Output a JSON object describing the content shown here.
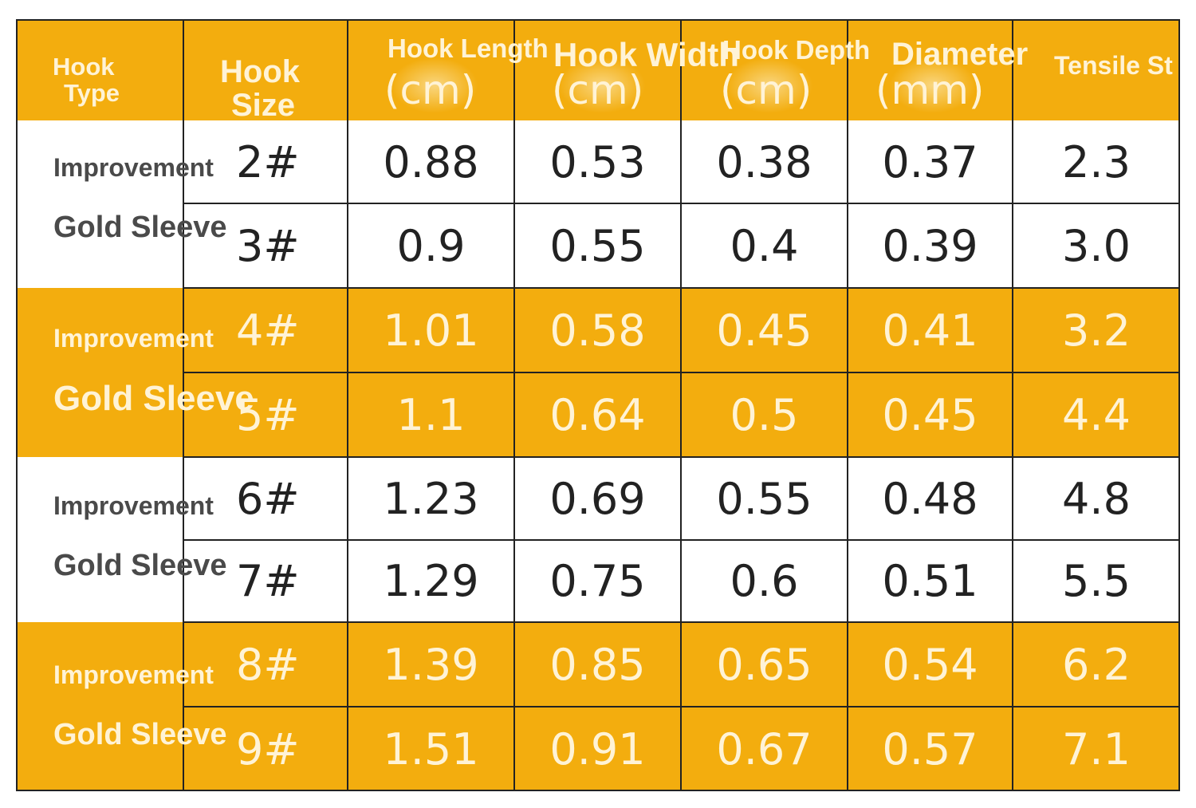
{
  "colors": {
    "gold": "#f3ad0e",
    "white": "#ffffff",
    "text_dark": "#222222",
    "text_light": "#fff3d6",
    "label_dark": "#4a4a4a"
  },
  "header": {
    "hook_type": [
      "Hook",
      "Type"
    ],
    "hook_size": [
      "Hook",
      "Size"
    ],
    "hook_length": "Hook Length",
    "hook_width": "Hook Width",
    "hook_depth": "Hook Depth",
    "diameter": "Diameter",
    "tensile": "Tensile St",
    "units": [
      "(cm)",
      "(cm)",
      "(cm)",
      "(mm)"
    ]
  },
  "groups": [
    {
      "line1": "Improvement",
      "line2": "Gold Sleeve"
    },
    {
      "line1": "Improvement",
      "line2": "Gold Sleeve"
    },
    {
      "line1": "Improvement",
      "line2": "Gold Sleeve"
    },
    {
      "line1": "Improvement",
      "line2": "Gold Sleeve"
    }
  ],
  "rows": [
    {
      "size": "2#",
      "length": "0.88",
      "width": "0.53",
      "depth": "0.38",
      "diameter": "0.37",
      "tensile": "2.3"
    },
    {
      "size": "3#",
      "length": "0.9",
      "width": "0.55",
      "depth": "0.4",
      "diameter": "0.39",
      "tensile": "3.0"
    },
    {
      "size": "4#",
      "length": "1.01",
      "width": "0.58",
      "depth": "0.45",
      "diameter": "0.41",
      "tensile": "3.2"
    },
    {
      "size": "5#",
      "length": "1.1",
      "width": "0.64",
      "depth": "0.5",
      "diameter": "0.45",
      "tensile": "4.4"
    },
    {
      "size": "6#",
      "length": "1.23",
      "width": "0.69",
      "depth": "0.55",
      "diameter": "0.48",
      "tensile": "4.8"
    },
    {
      "size": "7#",
      "length": "1.29",
      "width": "0.75",
      "depth": "0.6",
      "diameter": "0.51",
      "tensile": "5.5"
    },
    {
      "size": "8#",
      "length": "1.39",
      "width": "0.85",
      "depth": "0.65",
      "diameter": "0.54",
      "tensile": "6.2"
    },
    {
      "size": "9#",
      "length": "1.51",
      "width": "0.91",
      "depth": "0.67",
      "diameter": "0.57",
      "tensile": "7.1"
    }
  ]
}
